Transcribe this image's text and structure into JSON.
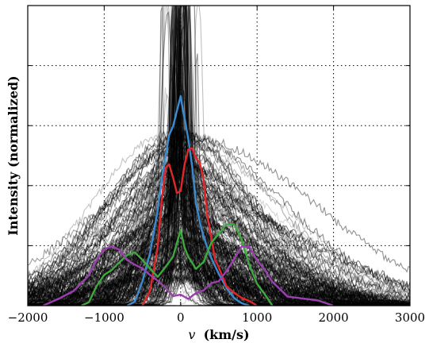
{
  "chart_data": {
    "type": "line",
    "xlabel": "v (km/s)",
    "xlabel_symbol": "v",
    "xlabel_unit": "(km/s)",
    "ylabel": "Intensity (normalized)",
    "xlim": [
      -2000,
      3000
    ],
    "ylim": [
      0,
      1.0
    ],
    "xticks": [
      -2000,
      -1000,
      0,
      1000,
      2000,
      3000
    ],
    "xtick_labels": [
      "−2000",
      "−1000",
      "0",
      "1000",
      "2000",
      "3000"
    ],
    "yticks": [
      0,
      0.2,
      0.4,
      0.6,
      0.8,
      1.0
    ],
    "ytick_labels_shown": false,
    "grid": true,
    "background_ensemble": {
      "description_note": "many gray/black individual profiles",
      "count": 260,
      "color": "#000000"
    },
    "series": [
      {
        "color": "#3b8bd2",
        "x": [
          -700,
          -600,
          -500,
          -400,
          -300,
          -250,
          -200,
          -150,
          -100,
          -50,
          0,
          30,
          60,
          100,
          150,
          200,
          250,
          300,
          350,
          400,
          500,
          600,
          700,
          800,
          900
        ],
        "y": [
          0.0,
          0.02,
          0.08,
          0.18,
          0.32,
          0.42,
          0.5,
          0.56,
          0.6,
          0.64,
          0.7,
          0.66,
          0.62,
          0.56,
          0.46,
          0.35,
          0.28,
          0.24,
          0.2,
          0.16,
          0.1,
          0.06,
          0.03,
          0.01,
          0.0
        ]
      },
      {
        "color": "#e3262a",
        "x": [
          -500,
          -400,
          -300,
          -250,
          -200,
          -150,
          -100,
          -50,
          0,
          50,
          100,
          150,
          200,
          250,
          300,
          350,
          400,
          450,
          500,
          600,
          700,
          800,
          900,
          1000
        ],
        "y": [
          0.0,
          0.05,
          0.2,
          0.35,
          0.46,
          0.48,
          0.42,
          0.38,
          0.38,
          0.46,
          0.52,
          0.53,
          0.5,
          0.47,
          0.42,
          0.3,
          0.22,
          0.16,
          0.12,
          0.07,
          0.04,
          0.02,
          0.01,
          0.0
        ]
      },
      {
        "color": "#3daa3d",
        "x": [
          -1300,
          -1200,
          -1100,
          -1000,
          -900,
          -800,
          -700,
          -600,
          -500,
          -400,
          -300,
          -200,
          -100,
          0,
          50,
          100,
          200,
          300,
          400,
          500,
          600,
          700,
          800,
          900,
          1000,
          1100,
          1200
        ],
        "y": [
          0.0,
          0.02,
          0.06,
          0.1,
          0.12,
          0.14,
          0.17,
          0.18,
          0.15,
          0.12,
          0.1,
          0.12,
          0.17,
          0.26,
          0.2,
          0.16,
          0.13,
          0.14,
          0.2,
          0.25,
          0.28,
          0.27,
          0.22,
          0.14,
          0.08,
          0.03,
          0.0
        ]
      },
      {
        "color": "#9b3fb0",
        "x": [
          -1800,
          -1600,
          -1400,
          -1200,
          -1100,
          -1000,
          -900,
          -800,
          -700,
          -600,
          -500,
          -400,
          -300,
          -200,
          -100,
          0,
          100,
          200,
          300,
          400,
          500,
          600,
          700,
          800,
          900,
          1000,
          1100,
          1200,
          1400,
          1600,
          1800,
          2000
        ],
        "y": [
          0.0,
          0.02,
          0.05,
          0.1,
          0.15,
          0.19,
          0.2,
          0.18,
          0.16,
          0.14,
          0.12,
          0.1,
          0.08,
          0.06,
          0.04,
          0.03,
          0.03,
          0.04,
          0.05,
          0.07,
          0.09,
          0.12,
          0.16,
          0.2,
          0.2,
          0.16,
          0.12,
          0.08,
          0.04,
          0.02,
          0.01,
          0.0
        ]
      }
    ]
  }
}
